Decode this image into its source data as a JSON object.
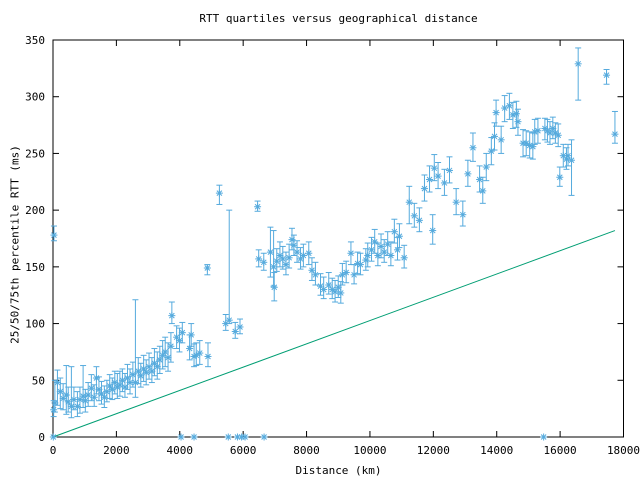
{
  "page": {
    "background": "#ffffff"
  },
  "chart_data": {
    "type": "scatter",
    "title": "RTT quartiles versus geographical distance",
    "xlabel": "Distance (km)",
    "ylabel": "25/50/75th percentile RTT (ms)",
    "xlim": [
      0,
      18000
    ],
    "ylim": [
      0,
      350
    ],
    "xticks": [
      0,
      2000,
      4000,
      6000,
      8000,
      10000,
      12000,
      14000,
      16000,
      18000
    ],
    "yticks": [
      0,
      50,
      100,
      150,
      200,
      250,
      300,
      350
    ],
    "grid": false,
    "legend_position": "none",
    "marker_style": "asterisk-with-error-bars",
    "colors": {
      "points": "#55aadd",
      "reference_line": "#009e73",
      "axis": "#000000"
    },
    "points_format": "[distance_km, median_ms, q25_ms, q75_ms]",
    "points": [
      [
        10,
        0,
        0,
        0
      ],
      [
        20,
        24,
        18,
        32
      ],
      [
        30,
        178,
        173,
        186
      ],
      [
        60,
        30,
        22,
        50
      ],
      [
        140,
        48,
        28,
        59
      ],
      [
        230,
        40,
        25,
        52
      ],
      [
        320,
        34,
        24,
        47
      ],
      [
        420,
        37,
        20,
        63
      ],
      [
        480,
        31,
        22,
        44
      ],
      [
        580,
        27,
        17,
        62
      ],
      [
        660,
        33,
        24,
        44
      ],
      [
        770,
        27,
        18,
        40
      ],
      [
        850,
        33,
        21,
        44
      ],
      [
        950,
        36,
        26,
        63
      ],
      [
        1020,
        32,
        22,
        42
      ],
      [
        1110,
        37,
        27,
        48
      ],
      [
        1210,
        43,
        32,
        55
      ],
      [
        1300,
        35,
        27,
        46
      ],
      [
        1370,
        52,
        38,
        62
      ],
      [
        1450,
        42,
        32,
        53
      ],
      [
        1530,
        38,
        29,
        49
      ],
      [
        1620,
        35,
        26,
        45
      ],
      [
        1700,
        40,
        31,
        50
      ],
      [
        1790,
        45,
        34,
        55
      ],
      [
        1870,
        42,
        33,
        52
      ],
      [
        1950,
        48,
        38,
        58
      ],
      [
        2030,
        44,
        34,
        56
      ],
      [
        2110,
        46,
        36,
        58
      ],
      [
        2190,
        50,
        40,
        60
      ],
      [
        2270,
        44,
        35,
        56
      ],
      [
        2350,
        52,
        42,
        64
      ],
      [
        2430,
        48,
        38,
        60
      ],
      [
        2520,
        55,
        44,
        66
      ],
      [
        2600,
        48,
        35,
        121
      ],
      [
        2690,
        58,
        47,
        70
      ],
      [
        2770,
        54,
        44,
        65
      ],
      [
        2860,
        60,
        49,
        72
      ],
      [
        2940,
        57,
        46,
        68
      ],
      [
        3030,
        62,
        51,
        74
      ],
      [
        3120,
        58,
        48,
        70
      ],
      [
        3200,
        65,
        54,
        78
      ],
      [
        3290,
        62,
        51,
        75
      ],
      [
        3370,
        68,
        56,
        80
      ],
      [
        3460,
        72,
        60,
        85
      ],
      [
        3540,
        75,
        62,
        88
      ],
      [
        3630,
        70,
        58,
        83
      ],
      [
        3720,
        80,
        66,
        92
      ],
      [
        3750,
        107,
        100,
        119
      ],
      [
        3900,
        88,
        78,
        98
      ],
      [
        3990,
        85,
        75,
        96
      ],
      [
        4080,
        92,
        83,
        101
      ],
      [
        4040,
        0,
        0,
        0
      ],
      [
        4310,
        78,
        68,
        90
      ],
      [
        4360,
        90,
        80,
        100
      ],
      [
        4450,
        71,
        62,
        82
      ],
      [
        4450,
        0,
        0,
        0
      ],
      [
        4520,
        72,
        63,
        83
      ],
      [
        4630,
        74,
        64,
        85
      ],
      [
        4890,
        71,
        62,
        83
      ],
      [
        4870,
        149,
        143,
        152
      ],
      [
        5250,
        215,
        205,
        222
      ],
      [
        5450,
        100,
        94,
        108
      ],
      [
        5530,
        0,
        0,
        0
      ],
      [
        5560,
        103,
        100,
        200
      ],
      [
        5750,
        93,
        87,
        101
      ],
      [
        5820,
        0,
        0,
        0
      ],
      [
        5900,
        97,
        91,
        104
      ],
      [
        5950,
        0,
        0,
        0
      ],
      [
        6060,
        0,
        0,
        0
      ],
      [
        6455,
        203,
        199,
        208
      ],
      [
        6490,
        157,
        150,
        165
      ],
      [
        6650,
        154,
        147,
        162
      ],
      [
        6660,
        0,
        0,
        0
      ],
      [
        6860,
        163,
        141,
        185
      ],
      [
        6960,
        150,
        133,
        182
      ],
      [
        6980,
        132,
        120,
        145
      ],
      [
        7060,
        155,
        146,
        166
      ],
      [
        7160,
        160,
        150,
        172
      ],
      [
        7250,
        157,
        148,
        168
      ],
      [
        7350,
        152,
        143,
        163
      ],
      [
        7450,
        158,
        149,
        170
      ],
      [
        7540,
        174,
        165,
        184
      ],
      [
        7600,
        169,
        160,
        178
      ],
      [
        7700,
        163,
        154,
        173
      ],
      [
        7810,
        157,
        148,
        167
      ],
      [
        7900,
        160,
        150,
        170
      ],
      [
        8070,
        162,
        152,
        172
      ],
      [
        8170,
        147,
        138,
        158
      ],
      [
        8280,
        143,
        134,
        154
      ],
      [
        8440,
        133,
        125,
        144
      ],
      [
        8540,
        130,
        122,
        141
      ],
      [
        8700,
        134,
        126,
        145
      ],
      [
        8810,
        130,
        122,
        140
      ],
      [
        8900,
        128,
        119,
        138
      ],
      [
        9000,
        132,
        123,
        142
      ],
      [
        9080,
        127,
        118,
        137
      ],
      [
        9130,
        143,
        134,
        153
      ],
      [
        9250,
        145,
        136,
        155
      ],
      [
        9400,
        162,
        152,
        172
      ],
      [
        9500,
        143,
        135,
        152
      ],
      [
        9610,
        153,
        144,
        163
      ],
      [
        9700,
        152,
        143,
        162
      ],
      [
        9870,
        156,
        147,
        166
      ],
      [
        9930,
        160,
        150,
        171
      ],
      [
        10050,
        165,
        155,
        176
      ],
      [
        10150,
        172,
        162,
        183
      ],
      [
        10250,
        160,
        151,
        171
      ],
      [
        10350,
        168,
        158,
        179
      ],
      [
        10450,
        163,
        154,
        174
      ],
      [
        10560,
        170,
        160,
        181
      ],
      [
        10660,
        160,
        151,
        172
      ],
      [
        10770,
        181,
        171,
        192
      ],
      [
        10870,
        165,
        156,
        176
      ],
      [
        10930,
        177,
        167,
        188
      ],
      [
        11080,
        158,
        149,
        169
      ],
      [
        11240,
        207,
        188,
        221
      ],
      [
        11400,
        195,
        185,
        206
      ],
      [
        11560,
        191,
        181,
        202
      ],
      [
        11720,
        219,
        208,
        231
      ],
      [
        11880,
        227,
        216,
        239
      ],
      [
        11980,
        182,
        170,
        196
      ],
      [
        12030,
        237,
        226,
        249
      ],
      [
        12150,
        230,
        219,
        242
      ],
      [
        12350,
        224,
        213,
        236
      ],
      [
        12510,
        235,
        224,
        247
      ],
      [
        12720,
        207,
        196,
        219
      ],
      [
        12930,
        196,
        186,
        208
      ],
      [
        13090,
        232,
        221,
        244
      ],
      [
        13250,
        255,
        243,
        268
      ],
      [
        13460,
        227,
        216,
        239
      ],
      [
        13560,
        217,
        206,
        229
      ],
      [
        13670,
        238,
        226,
        250
      ],
      [
        13830,
        252,
        240,
        264
      ],
      [
        13930,
        265,
        253,
        277
      ],
      [
        13980,
        286,
        274,
        297
      ],
      [
        14140,
        262,
        250,
        274
      ],
      [
        14250,
        290,
        278,
        301
      ],
      [
        14400,
        292,
        280,
        303
      ],
      [
        14510,
        284,
        272,
        295
      ],
      [
        14620,
        285,
        273,
        296
      ],
      [
        14670,
        278,
        266,
        289
      ],
      [
        14830,
        259,
        247,
        271
      ],
      [
        14930,
        259,
        248,
        270
      ],
      [
        15040,
        257,
        246,
        269
      ],
      [
        15140,
        256,
        245,
        268
      ],
      [
        15200,
        269,
        258,
        280
      ],
      [
        15300,
        270,
        259,
        281
      ],
      [
        15480,
        0,
        0,
        0
      ],
      [
        15520,
        272,
        262,
        281
      ],
      [
        15600,
        270,
        260,
        280
      ],
      [
        15680,
        268,
        258,
        278
      ],
      [
        15770,
        272,
        263,
        282
      ],
      [
        15850,
        268,
        259,
        277
      ],
      [
        15940,
        266,
        256,
        276
      ],
      [
        15990,
        229,
        221,
        238
      ],
      [
        16100,
        248,
        238,
        258
      ],
      [
        16200,
        245,
        236,
        255
      ],
      [
        16250,
        248,
        239,
        258
      ],
      [
        16360,
        244,
        213,
        262
      ],
      [
        16570,
        329,
        297,
        343
      ],
      [
        17465,
        319,
        311,
        324
      ],
      [
        17730,
        267,
        259,
        287
      ]
    ],
    "reference_line": {
      "x": [
        0,
        17730
      ],
      "y": [
        0,
        182
      ]
    }
  }
}
